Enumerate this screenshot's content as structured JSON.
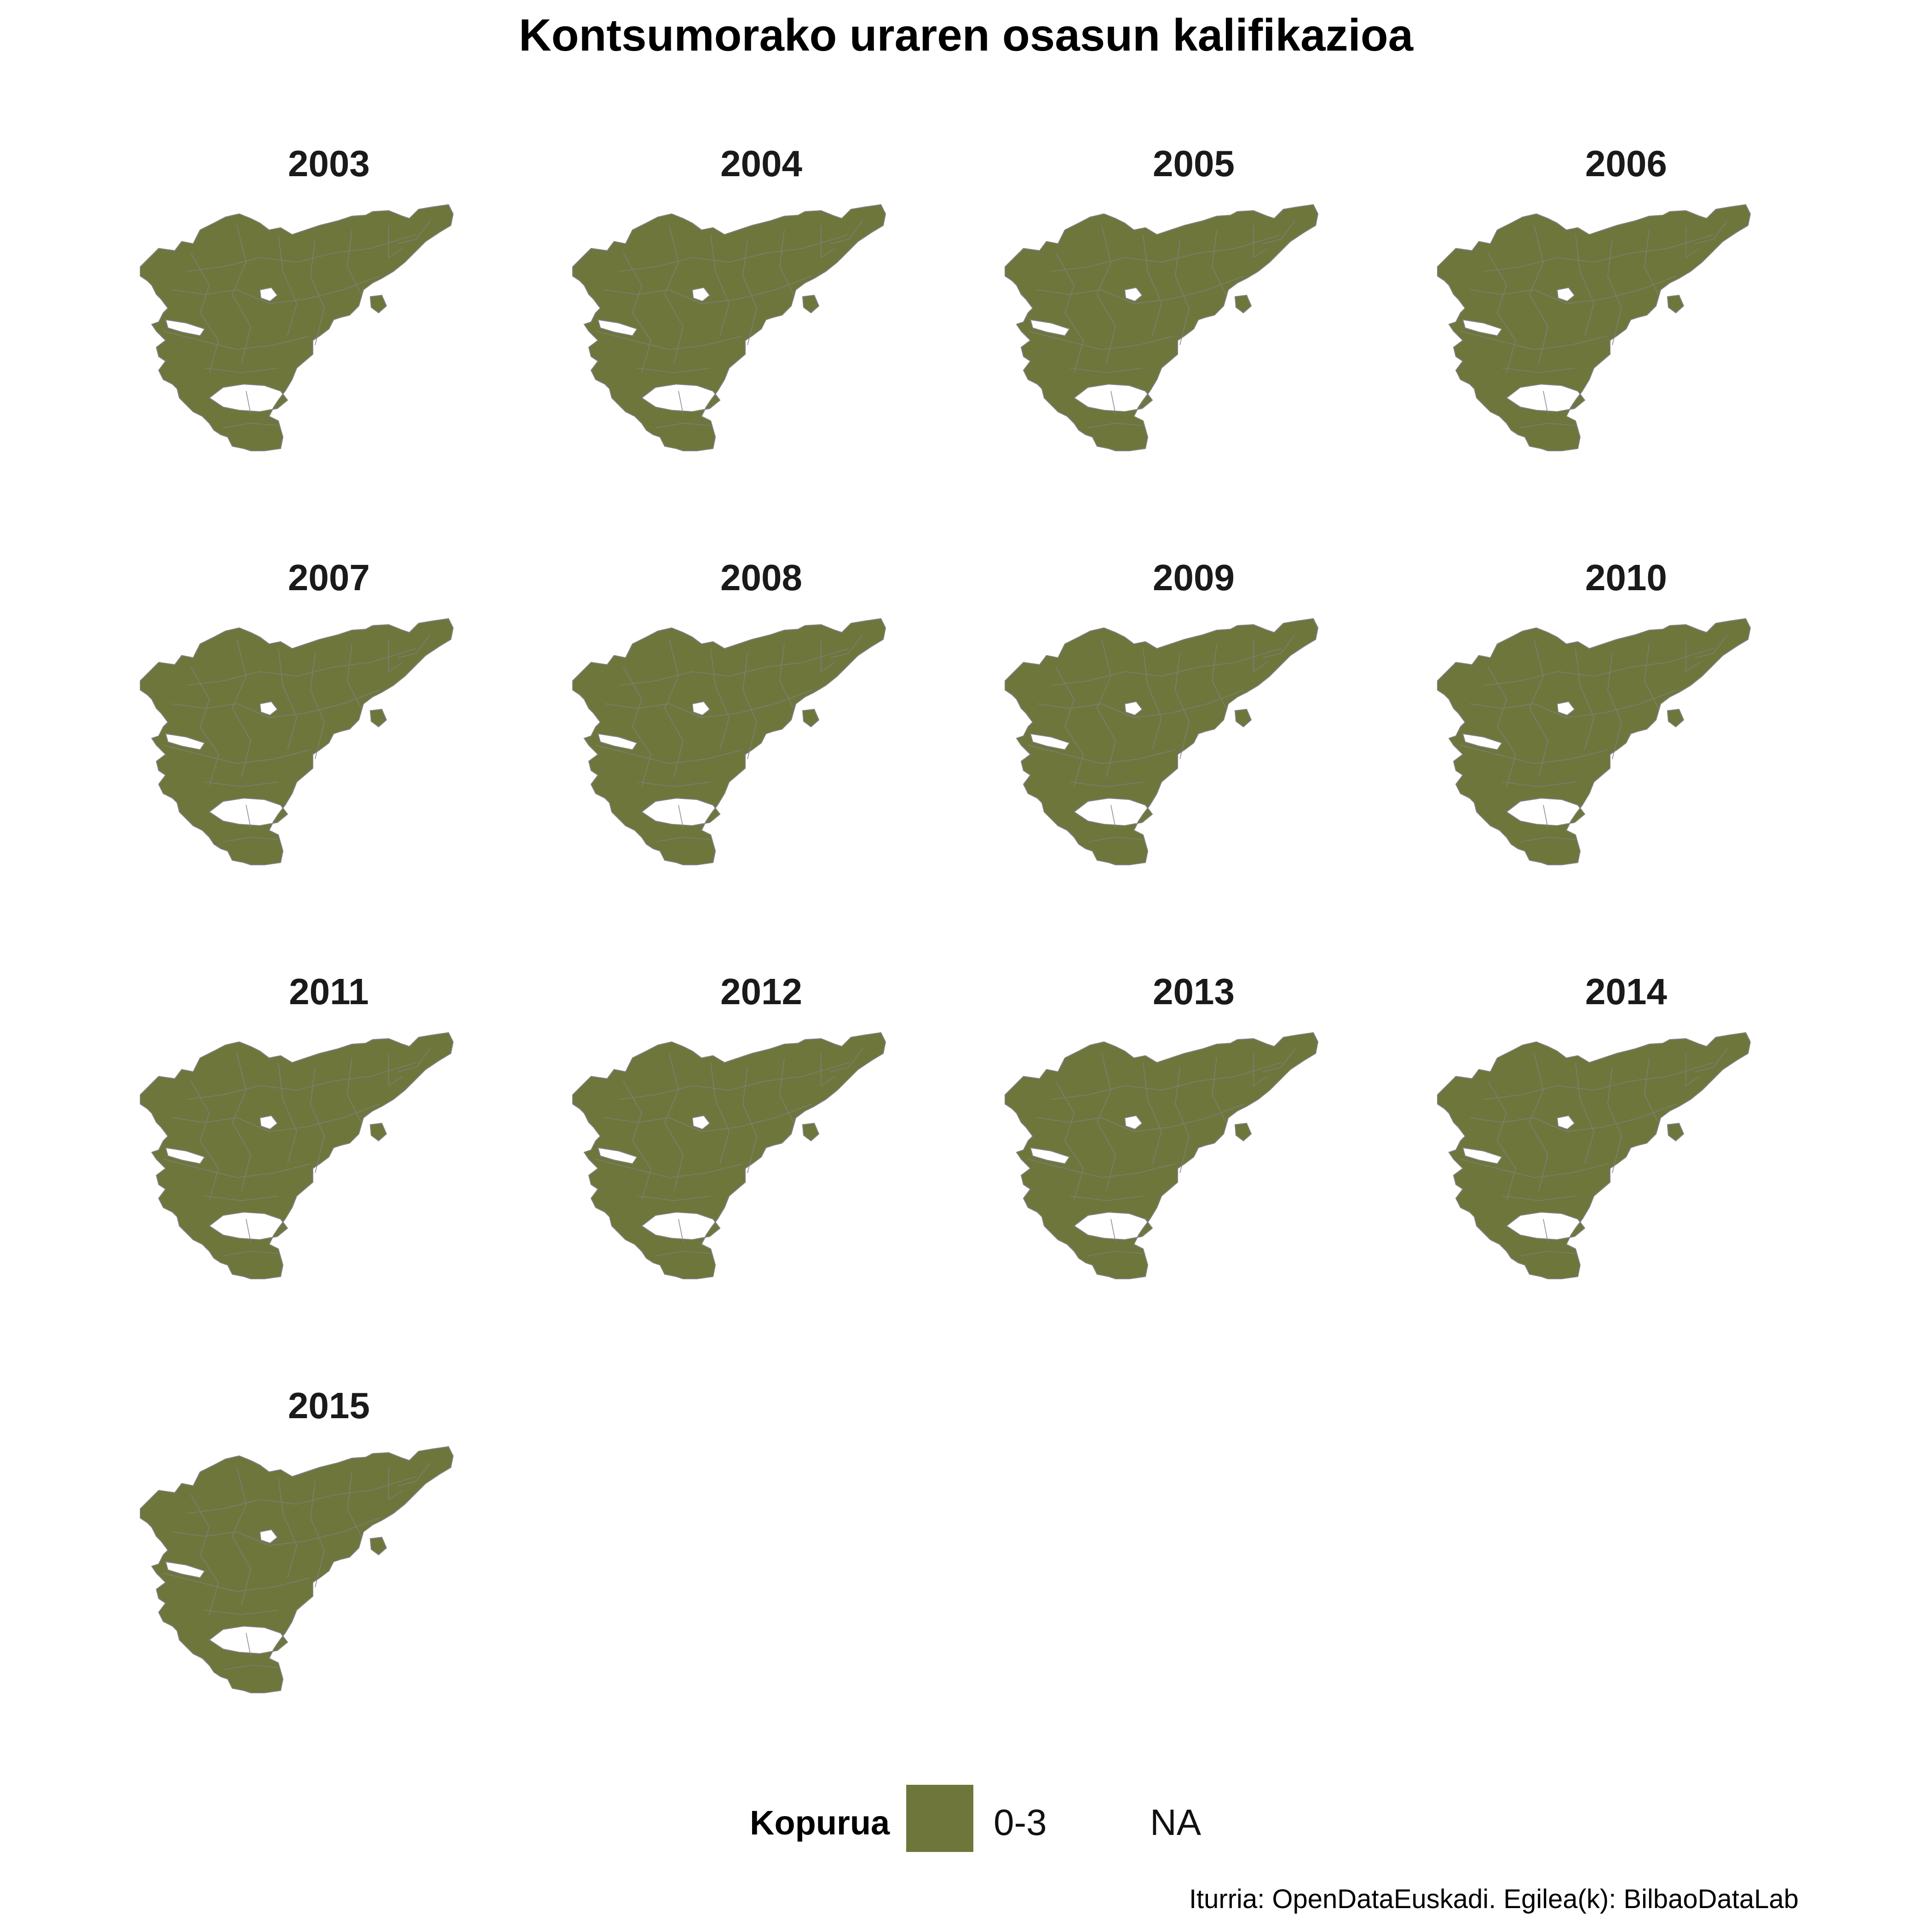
{
  "title": "Kontsumorako uraren osasun kalifikazioa",
  "colors": {
    "fill": "#6e763b",
    "border": "#7f7f7f",
    "background": "#ffffff"
  },
  "panels": [
    {
      "year": "2003",
      "category": "0-3"
    },
    {
      "year": "2004",
      "category": "0-3"
    },
    {
      "year": "2005",
      "category": "0-3"
    },
    {
      "year": "2006",
      "category": "0-3"
    },
    {
      "year": "2007",
      "category": "0-3"
    },
    {
      "year": "2008",
      "category": "0-3"
    },
    {
      "year": "2009",
      "category": "0-3"
    },
    {
      "year": "2010",
      "category": "0-3"
    },
    {
      "year": "2011",
      "category": "0-3"
    },
    {
      "year": "2012",
      "category": "0-3"
    },
    {
      "year": "2013",
      "category": "0-3"
    },
    {
      "year": "2014",
      "category": "0-3"
    },
    {
      "year": "2015",
      "category": "0-3"
    }
  ],
  "legend": {
    "title": "Kopurua",
    "items": [
      {
        "label": "0-3",
        "color": "#6e763b"
      },
      {
        "label": "NA",
        "color": "#ffffff"
      }
    ]
  },
  "caption": "Iturria: OpenDataEuskadi. Egilea(k): BilbaoDataLab"
}
